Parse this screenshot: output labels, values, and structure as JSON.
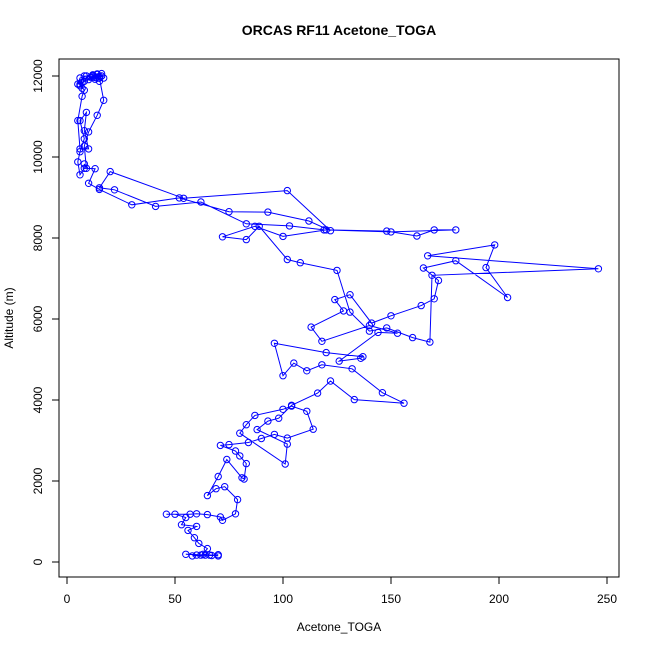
{
  "chart_data": {
    "type": "scatter",
    "title": "ORCAS RF11 Acetone_TOGA",
    "xlabel": "Acetone_TOGA",
    "ylabel": "Altitude (m)",
    "xlim": [
      0,
      250
    ],
    "ylim": [
      0,
      12000
    ],
    "xticks": [
      0,
      50,
      100,
      150,
      200,
      250
    ],
    "yticks": [
      0,
      2000,
      4000,
      6000,
      8000,
      10000,
      12000
    ],
    "grid": false,
    "color": "#0000ff",
    "series": [
      {
        "points": [
          [
            64,
            170
          ],
          [
            60,
            170
          ],
          [
            67,
            160
          ],
          [
            70,
            180
          ],
          [
            58,
            150
          ],
          [
            62,
            170
          ],
          [
            55,
            190
          ],
          [
            66,
            170
          ],
          [
            70,
            150
          ],
          [
            63,
            190
          ],
          [
            65,
            330
          ],
          [
            61,
            460
          ],
          [
            59,
            600
          ],
          [
            56,
            780
          ],
          [
            60,
            880
          ],
          [
            53,
            920
          ],
          [
            55,
            1100
          ],
          [
            50,
            1180
          ],
          [
            46,
            1180
          ],
          [
            57,
            1180
          ],
          [
            60,
            1190
          ],
          [
            65,
            1170
          ],
          [
            71,
            1110
          ],
          [
            72,
            1030
          ],
          [
            78,
            1190
          ],
          [
            79,
            1540
          ],
          [
            73,
            1860
          ],
          [
            69,
            1810
          ],
          [
            65,
            1640
          ],
          [
            70,
            2110
          ],
          [
            74,
            2530
          ],
          [
            81,
            2080
          ],
          [
            82,
            2050
          ],
          [
            83,
            2430
          ],
          [
            80,
            2620
          ],
          [
            78,
            2740
          ],
          [
            71,
            2880
          ],
          [
            75,
            2900
          ],
          [
            84,
            2950
          ],
          [
            90,
            3050
          ],
          [
            96,
            3150
          ],
          [
            102,
            3060
          ],
          [
            114,
            3280
          ],
          [
            111,
            3720
          ],
          [
            104,
            3850
          ],
          [
            100,
            3770
          ],
          [
            87,
            3620
          ],
          [
            83,
            3390
          ],
          [
            80,
            3180
          ],
          [
            101,
            2420
          ],
          [
            102,
            2910
          ],
          [
            88,
            3270
          ],
          [
            93,
            3480
          ],
          [
            98,
            3550
          ],
          [
            104,
            3870
          ],
          [
            116,
            4170
          ],
          [
            122,
            4470
          ],
          [
            133,
            4010
          ],
          [
            156,
            3920
          ],
          [
            146,
            4180
          ],
          [
            132,
            4770
          ],
          [
            118,
            4870
          ],
          [
            111,
            4720
          ],
          [
            105,
            4910
          ],
          [
            100,
            4600
          ],
          [
            96,
            5400
          ],
          [
            120,
            5170
          ],
          [
            137,
            5070
          ],
          [
            136,
            5030
          ],
          [
            126,
            4960
          ],
          [
            144,
            5670
          ],
          [
            153,
            5650
          ],
          [
            140,
            5840
          ],
          [
            118,
            5450
          ],
          [
            113,
            5800
          ],
          [
            128,
            6200
          ],
          [
            124,
            6480
          ],
          [
            131,
            6600
          ],
          [
            141,
            5900
          ],
          [
            150,
            6080
          ],
          [
            164,
            6330
          ],
          [
            170,
            6500
          ],
          [
            172,
            6950
          ],
          [
            165,
            7260
          ],
          [
            180,
            7440
          ],
          [
            204,
            6530
          ],
          [
            194,
            7270
          ],
          [
            198,
            7830
          ],
          [
            167,
            7560
          ],
          [
            246,
            7240
          ],
          [
            169,
            7080
          ],
          [
            168,
            5430
          ],
          [
            160,
            5540
          ],
          [
            148,
            5780
          ],
          [
            140,
            5700
          ],
          [
            131,
            6170
          ],
          [
            125,
            7200
          ],
          [
            108,
            7390
          ],
          [
            102,
            7470
          ],
          [
            89,
            8290
          ],
          [
            83,
            7960
          ],
          [
            72,
            8030
          ],
          [
            87,
            8290
          ],
          [
            100,
            8040
          ],
          [
            120,
            8200
          ],
          [
            148,
            8170
          ],
          [
            162,
            8050
          ],
          [
            170,
            8200
          ],
          [
            180,
            8200
          ],
          [
            150,
            8150
          ],
          [
            119,
            8200
          ],
          [
            103,
            8300
          ],
          [
            83,
            8350
          ],
          [
            62,
            8890
          ],
          [
            41,
            8780
          ],
          [
            22,
            9190
          ],
          [
            15,
            9240
          ],
          [
            20,
            9640
          ],
          [
            54,
            8980
          ],
          [
            102,
            9170
          ],
          [
            122,
            8180
          ],
          [
            112,
            8420
          ],
          [
            93,
            8640
          ],
          [
            75,
            8650
          ],
          [
            52,
            8990
          ],
          [
            30,
            8820
          ],
          [
            15,
            9200
          ],
          [
            10,
            9350
          ],
          [
            13,
            9710
          ],
          [
            8,
            9720
          ],
          [
            6,
            9560
          ],
          [
            5,
            9880
          ],
          [
            6,
            10130
          ],
          [
            8,
            10450
          ],
          [
            6,
            10900
          ],
          [
            9,
            11100
          ],
          [
            8,
            10650
          ],
          [
            10,
            10200
          ],
          [
            6,
            10200
          ],
          [
            5,
            10900
          ],
          [
            7,
            11500
          ],
          [
            8,
            11650
          ],
          [
            6,
            11800
          ],
          [
            7,
            11840
          ],
          [
            5,
            11800
          ],
          [
            6,
            11950
          ],
          [
            9,
            12000
          ],
          [
            12,
            12030
          ],
          [
            15,
            11990
          ],
          [
            11,
            11970
          ],
          [
            14,
            12040
          ],
          [
            13,
            11920
          ],
          [
            17,
            11950
          ],
          [
            15,
            11870
          ],
          [
            10,
            11910
          ],
          [
            12,
            12010
          ],
          [
            16,
            12060
          ],
          [
            8,
            11870
          ],
          [
            6,
            11760
          ],
          [
            7,
            11700
          ],
          [
            8,
            12000
          ],
          [
            12,
            11980
          ],
          [
            14,
            12050
          ],
          [
            16,
            12000
          ],
          [
            15,
            11950
          ],
          [
            17,
            11400
          ],
          [
            14,
            11030
          ],
          [
            10,
            10620
          ],
          [
            8,
            10270
          ],
          [
            9,
            9720
          ],
          [
            8,
            9830
          ]
        ]
      }
    ]
  }
}
